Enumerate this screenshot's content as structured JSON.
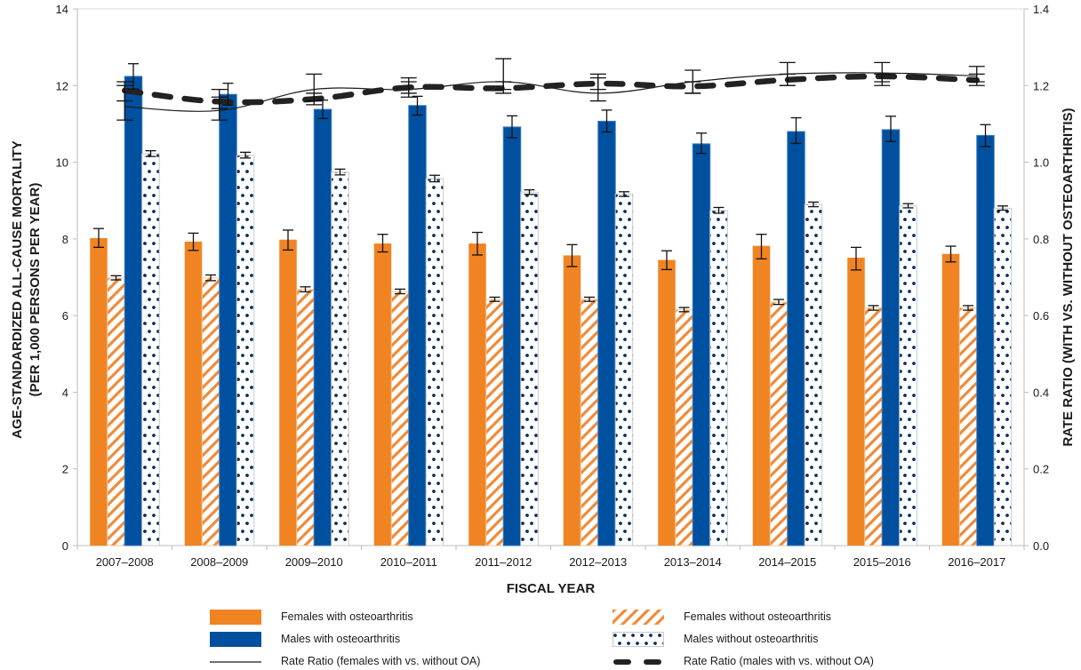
{
  "chart_data": {
    "type": "bar",
    "title": "",
    "xlabel": "FISCAL YEAR",
    "ylabel": [
      "AGE-STANDARDIZED ALL-CAUSE MORTALITY",
      "(PER 1,000 PERSONS PER YEAR)"
    ],
    "y2label": "RATE RATIO (WITH VS. WITHOUT OSTEOARTHRITIS)",
    "ylim": [
      0,
      14
    ],
    "yticks": [
      "0",
      "2",
      "4",
      "6",
      "8",
      "10",
      "12",
      "14"
    ],
    "y2lim": [
      0,
      1.4
    ],
    "y2ticks": [
      "0.0",
      "0.2",
      "0.4",
      "0.6",
      "0.8",
      "1.0",
      "1.2",
      "1.4"
    ],
    "grid": false,
    "legend_position": "bottom",
    "categories": [
      "2007–2008",
      "2008–2009",
      "2009–2010",
      "2010–2011",
      "2011–2012",
      "2012–2013",
      "2013–2014",
      "2014–2015",
      "2015–2016",
      "2016–2017"
    ],
    "series": [
      {
        "name": "Females with osteoarthritis",
        "kind": "bar",
        "pattern": "solid",
        "color": "#F08423",
        "values": [
          8.02,
          7.93,
          7.98,
          7.88,
          7.88,
          7.57,
          7.45,
          7.82,
          7.51,
          7.61
        ],
        "ci_low": [
          7.78,
          7.7,
          7.71,
          7.66,
          7.58,
          7.28,
          7.2,
          7.48,
          7.19,
          7.4
        ],
        "ci_high": [
          8.27,
          8.15,
          8.23,
          8.12,
          8.17,
          7.85,
          7.69,
          8.12,
          7.78,
          7.81
        ]
      },
      {
        "name": "Females without osteoarthritis",
        "kind": "bar",
        "pattern": "hatch",
        "color": "#F08423",
        "values": [
          6.98,
          6.98,
          6.68,
          6.62,
          6.42,
          6.42,
          6.15,
          6.35,
          6.2,
          6.2
        ],
        "ci_low": [
          6.93,
          6.91,
          6.62,
          6.57,
          6.37,
          6.37,
          6.1,
          6.29,
          6.14,
          6.14
        ],
        "ci_high": [
          7.04,
          7.06,
          6.75,
          6.69,
          6.48,
          6.48,
          6.21,
          6.42,
          6.26,
          6.26
        ]
      },
      {
        "name": "Males with osteoarthritis",
        "kind": "bar",
        "pattern": "solid",
        "color": "#0050A0",
        "values": [
          12.24,
          11.77,
          11.38,
          11.48,
          10.92,
          11.07,
          10.48,
          10.8,
          10.85,
          10.7
        ],
        "ci_low": [
          11.91,
          11.49,
          11.14,
          11.23,
          10.64,
          10.79,
          10.23,
          10.49,
          10.54,
          10.41
        ],
        "ci_high": [
          12.57,
          12.06,
          11.62,
          11.72,
          11.21,
          11.36,
          10.76,
          11.16,
          11.2,
          10.98
        ]
      },
      {
        "name": "Males without osteoarthritis",
        "kind": "bar",
        "pattern": "dots",
        "color": "#0A2E5C",
        "values": [
          10.22,
          10.18,
          9.74,
          9.57,
          9.22,
          9.17,
          8.74,
          8.9,
          8.86,
          8.8
        ],
        "ci_low": [
          10.15,
          10.11,
          9.67,
          9.49,
          9.16,
          9.11,
          8.67,
          8.84,
          8.81,
          8.75
        ],
        "ci_high": [
          10.3,
          10.26,
          9.82,
          9.66,
          9.28,
          9.23,
          8.82,
          8.96,
          8.92,
          8.86
        ]
      },
      {
        "name": "Rate Ratio (females with vs. without OA)",
        "kind": "line",
        "axis": "right",
        "style": "solid",
        "color": "#1a1a1a",
        "values": [
          1.145,
          1.135,
          1.19,
          1.19,
          1.21,
          1.18,
          1.21,
          1.23,
          1.233,
          1.225
        ],
        "ci_low": [
          1.11,
          1.11,
          1.16,
          1.17,
          1.19,
          1.16,
          1.18,
          1.2,
          1.2,
          1.21
        ],
        "ci_high": [
          1.21,
          1.19,
          1.23,
          1.21,
          1.27,
          1.23,
          1.24,
          1.26,
          1.26,
          1.25
        ]
      },
      {
        "name": "Rate Ratio (males with vs. without OA)",
        "kind": "line",
        "axis": "right",
        "style": "dashed",
        "color": "#222222",
        "values": [
          1.187,
          1.158,
          1.165,
          1.195,
          1.193,
          1.205,
          1.198,
          1.215,
          1.224,
          1.214
        ],
        "ci_low": [
          1.16,
          1.14,
          1.15,
          1.18,
          1.18,
          1.19,
          1.18,
          1.2,
          1.21,
          1.2
        ],
        "ci_high": [
          1.2,
          1.17,
          1.18,
          1.22,
          1.21,
          1.22,
          1.21,
          1.23,
          1.23,
          1.23
        ]
      }
    ]
  },
  "legend": {
    "items": [
      {
        "label": "Females with osteoarthritis",
        "pattern": "solid-orange"
      },
      {
        "label": "Females without osteoarthritis",
        "pattern": "hatch-orange"
      },
      {
        "label": "Males with osteoarthritis",
        "pattern": "solid-blue"
      },
      {
        "label": "Males without osteoarthritis",
        "pattern": "dots-blue"
      },
      {
        "label": "Rate Ratio (females with vs. without OA)",
        "pattern": "thin-line"
      },
      {
        "label": "Rate Ratio (males with vs. without OA)",
        "pattern": "dashed-line"
      }
    ]
  }
}
